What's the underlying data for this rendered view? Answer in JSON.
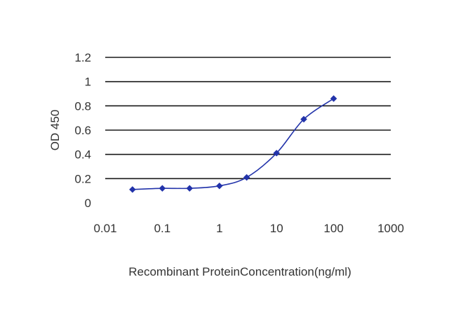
{
  "chart_data": {
    "type": "line",
    "title": "",
    "xlabel": "Recombinant ProteinConcentration(ng/ml)",
    "ylabel": "OD 450",
    "x_scale": "log",
    "xlim": [
      0.01,
      1000
    ],
    "ylim": [
      0,
      1.2
    ],
    "x_ticks": [
      "0.01",
      "0.1",
      "1",
      "10",
      "100",
      "1000"
    ],
    "y_ticks": [
      "0",
      "0.2",
      "0.4",
      "0.6",
      "0.8",
      "1",
      "1.2"
    ],
    "grid": "horizontal",
    "legend": "none",
    "series": [
      {
        "x": [
          0.03,
          0.1,
          0.3,
          1,
          3,
          10,
          30,
          100
        ],
        "y": [
          0.11,
          0.12,
          0.12,
          0.14,
          0.21,
          0.41,
          0.69,
          0.86
        ]
      }
    ],
    "colors": {
      "series": "#2233aa",
      "grid": "#1a1a1a",
      "plot_background": "#ffffff"
    }
  }
}
